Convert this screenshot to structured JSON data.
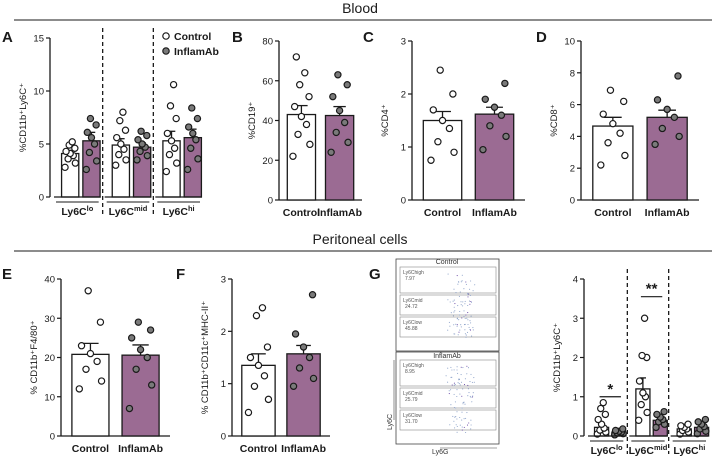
{
  "sections": {
    "blood": "Blood",
    "peritoneal": "Peritoneal cells"
  },
  "legend": {
    "control": "Control",
    "inflamab": "InflamAb"
  },
  "colors": {
    "control": "#ffffff",
    "inflamab": "#9b6b93",
    "stroke": "#1a1a1a",
    "dot": "#7a7a7a"
  },
  "chart_data": [
    {
      "id": "A",
      "type": "bar",
      "letter": "A",
      "ylabel": "%CD11b⁺Ly6C⁺",
      "ylim": [
        0,
        15
      ],
      "yticks": [
        0,
        5,
        10,
        15
      ],
      "groups": [
        {
          "label": "Ly6C",
          "sup": "lo",
          "control": 4.1,
          "inflamab": 5.3,
          "control_err": 0.3,
          "inflamab_err": 0.8,
          "control_pts": [
            2.8,
            3.2,
            3.6,
            3.9,
            4.1,
            4.3,
            4.6,
            4.9,
            5.2
          ],
          "inflamab_pts": [
            2.6,
            3.4,
            4.2,
            5.0,
            5.6,
            6.1,
            6.8,
            7.4
          ]
        },
        {
          "label": "Ly6C",
          "sup": "mid",
          "control": 4.9,
          "inflamab": 4.7,
          "control_err": 0.6,
          "inflamab_err": 0.4,
          "control_pts": [
            3.0,
            3.5,
            4.0,
            4.5,
            5.0,
            5.6,
            6.3,
            7.2,
            8.0
          ],
          "inflamab_pts": [
            3.5,
            3.9,
            4.3,
            4.7,
            5.0,
            5.4,
            5.8,
            6.2
          ]
        },
        {
          "label": "Ly6C",
          "sup": "hi",
          "control": 5.3,
          "inflamab": 5.6,
          "control_err": 0.9,
          "inflamab_err": 0.8,
          "control_pts": [
            2.4,
            3.2,
            4.0,
            4.6,
            5.3,
            6.0,
            7.4,
            8.6,
            10.6
          ],
          "inflamab_pts": [
            2.6,
            3.6,
            4.6,
            5.4,
            6.0,
            6.6,
            7.4,
            8.4
          ]
        }
      ]
    },
    {
      "id": "B",
      "type": "bar",
      "letter": "B",
      "ylabel": "%CD19⁺",
      "ylim": [
        0,
        80
      ],
      "yticks": [
        0,
        20,
        40,
        60,
        80
      ],
      "categories": [
        "Control",
        "InflamAb"
      ],
      "values": [
        43,
        42.5
      ],
      "errors": [
        4.5,
        4.5
      ],
      "points": [
        [
          22,
          28,
          33,
          38,
          42,
          47,
          52,
          58,
          64,
          72
        ],
        [
          24,
          29,
          34,
          39,
          45,
          52,
          58,
          63
        ]
      ]
    },
    {
      "id": "C",
      "type": "bar",
      "letter": "C",
      "ylabel": "%CD4⁺",
      "ylim": [
        0,
        3
      ],
      "yticks": [
        0,
        1,
        2,
        3
      ],
      "categories": [
        "Control",
        "InflamAb"
      ],
      "values": [
        1.5,
        1.62
      ],
      "errors": [
        0.17,
        0.13
      ],
      "points": [
        [
          0.75,
          0.9,
          1.1,
          1.35,
          1.5,
          1.7,
          2.0,
          2.45
        ],
        [
          0.95,
          1.2,
          1.4,
          1.6,
          1.75,
          1.9,
          2.2
        ]
      ]
    },
    {
      "id": "D",
      "type": "bar",
      "letter": "D",
      "ylabel": "%CD8⁺",
      "ylim": [
        0,
        10
      ],
      "yticks": [
        0,
        2,
        4,
        6,
        8,
        10
      ],
      "categories": [
        "Control",
        "InflamAb"
      ],
      "values": [
        4.65,
        5.2
      ],
      "errors": [
        0.55,
        0.45
      ],
      "points": [
        [
          2.2,
          2.8,
          3.6,
          4.2,
          4.8,
          5.4,
          6.2,
          6.9
        ],
        [
          3.5,
          4.0,
          4.5,
          5.2,
          5.7,
          6.3,
          7.8
        ]
      ]
    },
    {
      "id": "E",
      "type": "bar",
      "letter": "E",
      "ylabel": "% CD11b⁺F4/80⁺",
      "ylim": [
        0,
        40
      ],
      "yticks": [
        0,
        10,
        20,
        30,
        40
      ],
      "categories": [
        "Control",
        "InflamAb"
      ],
      "values": [
        20.8,
        20.6
      ],
      "errors": [
        2.8,
        2.6
      ],
      "points": [
        [
          12,
          14,
          17,
          19,
          21,
          23,
          29,
          37
        ],
        [
          7,
          13,
          17,
          20,
          22,
          25,
          27,
          29
        ]
      ]
    },
    {
      "id": "F",
      "type": "bar",
      "letter": "F",
      "ylabel": "% CD11b⁺CD11c⁺MHC-II⁺",
      "ylim": [
        0,
        3
      ],
      "yticks": [
        0,
        1,
        2,
        3
      ],
      "categories": [
        "Control",
        "InflamAb"
      ],
      "values": [
        1.35,
        1.57
      ],
      "errors": [
        0.22,
        0.16
      ],
      "points": [
        [
          0.45,
          0.7,
          0.95,
          1.15,
          1.35,
          1.5,
          1.7,
          2.3,
          2.45
        ],
        [
          0.95,
          1.1,
          1.3,
          1.5,
          1.7,
          1.95,
          2.7
        ]
      ]
    },
    {
      "id": "G",
      "type": "bar",
      "letter": "G",
      "ylabel": "%CD11b⁺Ly6C⁺",
      "ylim": [
        0,
        4
      ],
      "yticks": [
        0,
        1,
        2,
        3,
        4
      ],
      "groups": [
        {
          "label": "Ly6C",
          "sup": "lo",
          "control": 0.22,
          "inflamab": 0.1,
          "control_err": 0.06,
          "inflamab_err": 0.03,
          "control_pts": [
            0.05,
            0.1,
            0.15,
            0.2,
            0.3,
            0.42,
            0.55,
            0.7,
            0.85
          ],
          "inflamab_pts": [
            0.03,
            0.06,
            0.08,
            0.1,
            0.12,
            0.14,
            0.18
          ]
        },
        {
          "label": "Ly6C",
          "sup": "mid",
          "control": 1.2,
          "inflamab": 0.4,
          "control_err": 0.28,
          "inflamab_err": 0.06,
          "control_pts": [
            0.4,
            0.6,
            0.8,
            1.0,
            1.1,
            1.4,
            2.0,
            2.05,
            3.0
          ],
          "inflamab_pts": [
            0.22,
            0.3,
            0.36,
            0.42,
            0.48,
            0.55,
            0.62
          ]
        },
        {
          "label": "Ly6C",
          "sup": "hi",
          "control": 0.18,
          "inflamab": 0.22,
          "control_err": 0.04,
          "inflamab_err": 0.05,
          "control_pts": [
            0.05,
            0.1,
            0.14,
            0.18,
            0.22,
            0.26,
            0.3
          ],
          "inflamab_pts": [
            0.06,
            0.12,
            0.18,
            0.24,
            0.3,
            0.36,
            0.42
          ]
        }
      ],
      "significance": [
        {
          "group": 0,
          "label": "*"
        },
        {
          "group": 1,
          "label": "**"
        }
      ]
    }
  ],
  "flow": {
    "top": {
      "title": "Control",
      "gates": [
        "Ly6Chigh\n7.97",
        "Ly6Cmid\n24.72",
        "Ly6Clow\n45.88"
      ]
    },
    "bottom": {
      "title": "InflamAb",
      "gates": [
        "Ly6Chigh\n8.95",
        "Ly6Cmid\n25.79",
        "Ly6Clow\n31.70"
      ]
    },
    "xlabel": "Ly6G",
    "ylabel": "Ly6C"
  }
}
